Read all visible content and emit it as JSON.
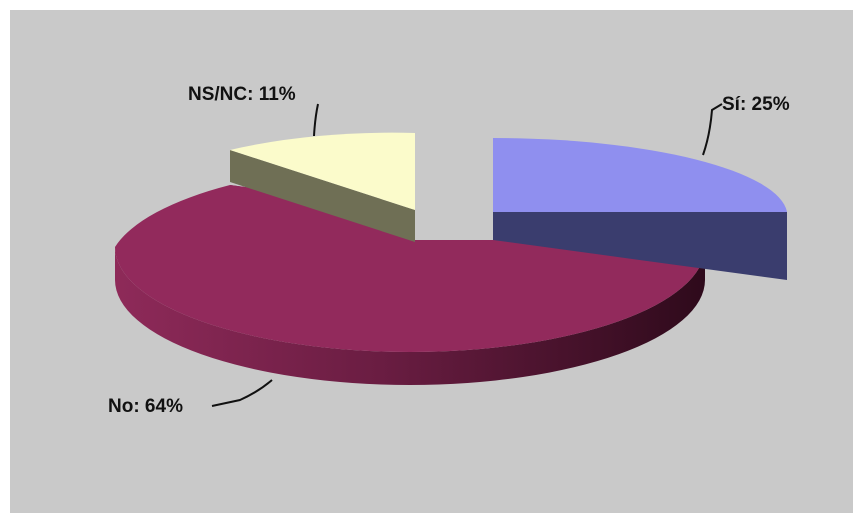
{
  "chart_data": {
    "type": "pie",
    "style": "3d-exploded",
    "slices": [
      {
        "label": "Sí",
        "label_text": "Sí: 25%",
        "value": 25,
        "color": "#8F8FEF",
        "side_color": "#3A3D6E",
        "exploded": true
      },
      {
        "label": "No",
        "label_text": "No: 64%",
        "value": 64,
        "color": "#922A5C",
        "side_color": "#5C1838",
        "exploded": false
      },
      {
        "label": "NS/NC",
        "label_text": "NS/NC: 11%",
        "value": 11,
        "color": "#FBFBCB",
        "side_color": "#6F6F55",
        "exploded": false
      }
    ],
    "background_color": "#C9C9C9",
    "page_color": "#FFFFFF"
  }
}
